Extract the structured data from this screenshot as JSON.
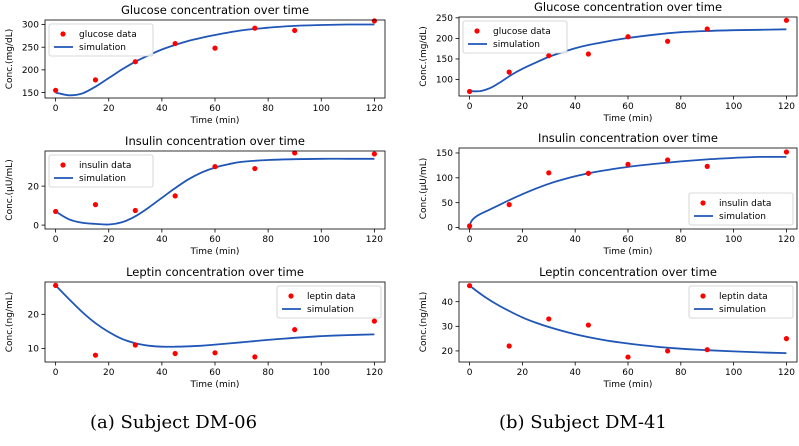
{
  "figure": {
    "caption_a": "(a) Subject DM-06",
    "caption_b": "(b) Subject DM-41"
  },
  "colors": {
    "data": "#ff0000",
    "simulation": "#1f56b7"
  },
  "chart_data": [
    {
      "type": "scatter",
      "panel": "a",
      "title": "Glucose concentration over time",
      "xlabel": "Time (min)",
      "ylabel": "Conc.(mg/dL)",
      "xlim": [
        -4,
        124
      ],
      "ylim": [
        138,
        310
      ],
      "xticks": [
        0,
        20,
        40,
        60,
        80,
        100,
        120
      ],
      "yticks": [
        150,
        200,
        250,
        300
      ],
      "legend_position": "upper left",
      "series": [
        {
          "name": "glucose data",
          "kind": "points",
          "x": [
            0,
            15,
            30,
            45,
            60,
            75,
            90,
            120
          ],
          "y": [
            155,
            178,
            218,
            258,
            248,
            292,
            287,
            308
          ]
        },
        {
          "name": "simulation",
          "kind": "line",
          "x": [
            0,
            5,
            10,
            15,
            20,
            25,
            30,
            35,
            40,
            45,
            50,
            55,
            60,
            70,
            80,
            90,
            100,
            110,
            120
          ],
          "y": [
            150,
            144,
            148,
            163,
            182,
            201,
            218,
            232,
            245,
            255,
            264,
            271,
            277,
            287,
            293,
            297,
            299,
            300,
            300
          ]
        }
      ]
    },
    {
      "type": "scatter",
      "panel": "b",
      "title": "Glucose concentration over time",
      "xlabel": "Time (min)",
      "ylabel": "Conc.(mg/dL)",
      "xlim": [
        -4,
        124
      ],
      "ylim": [
        60,
        252
      ],
      "xticks": [
        0,
        20,
        40,
        60,
        80,
        100,
        120
      ],
      "yticks": [
        100,
        150,
        200,
        250
      ],
      "legend_position": "upper left",
      "series": [
        {
          "name": "glucose data",
          "kind": "points",
          "x": [
            0,
            15,
            30,
            45,
            60,
            75,
            90,
            120
          ],
          "y": [
            71,
            118,
            158,
            162,
            204,
            193,
            223,
            244
          ]
        },
        {
          "name": "simulation",
          "kind": "line",
          "x": [
            0,
            4,
            8,
            12,
            16,
            20,
            25,
            30,
            35,
            40,
            45,
            50,
            55,
            60,
            70,
            80,
            90,
            100,
            110,
            120
          ],
          "y": [
            72,
            72,
            80,
            95,
            112,
            126,
            141,
            155,
            166,
            176,
            184,
            190,
            196,
            201,
            209,
            215,
            218,
            220,
            221,
            222
          ]
        }
      ]
    },
    {
      "type": "scatter",
      "panel": "a",
      "title": "Insulin concentration over time",
      "xlabel": "Time (min)",
      "ylabel": "Conc.(μU/mL)",
      "xlim": [
        -4,
        124
      ],
      "ylim": [
        -2,
        38
      ],
      "xticks": [
        0,
        20,
        40,
        60,
        80,
        100,
        120
      ],
      "yticks": [
        0,
        20
      ],
      "legend_position": "upper left",
      "series": [
        {
          "name": "insulin data",
          "kind": "points",
          "x": [
            0,
            15,
            30,
            45,
            60,
            75,
            90,
            120
          ],
          "y": [
            7,
            10.5,
            7.5,
            15,
            30,
            29,
            37,
            36.5
          ]
        },
        {
          "name": "simulation",
          "kind": "line",
          "x": [
            0,
            5,
            10,
            15,
            20,
            25,
            30,
            35,
            40,
            45,
            50,
            55,
            60,
            65,
            70,
            80,
            90,
            100,
            110,
            120
          ],
          "y": [
            7,
            3,
            1.2,
            0.6,
            0.3,
            1.5,
            4.5,
            9,
            14,
            19,
            23.5,
            27,
            29.5,
            31.2,
            32.4,
            33.4,
            33.8,
            34,
            34,
            34
          ]
        }
      ]
    },
    {
      "type": "scatter",
      "panel": "b",
      "title": "Insulin concentration over time",
      "xlabel": "Time (min)",
      "ylabel": "Conc.(μU/mL)",
      "xlim": [
        -4,
        124
      ],
      "ylim": [
        -3,
        160
      ],
      "xticks": [
        0,
        20,
        40,
        60,
        80,
        100,
        120
      ],
      "yticks": [
        0,
        50,
        100,
        150
      ],
      "legend_position": "lower right",
      "series": [
        {
          "name": "insulin data",
          "kind": "points",
          "x": [
            0,
            15,
            30,
            45,
            60,
            75,
            90,
            120
          ],
          "y": [
            3,
            46,
            110,
            109,
            127,
            136,
            123,
            152
          ]
        },
        {
          "name": "simulation",
          "kind": "line",
          "x": [
            0,
            1,
            3,
            6,
            10,
            15,
            20,
            25,
            30,
            35,
            40,
            45,
            50,
            60,
            70,
            80,
            90,
            100,
            110,
            120
          ],
          "y": [
            4,
            15,
            24,
            32,
            42,
            55,
            67,
            78,
            88,
            96,
            103,
            109,
            114,
            122,
            128,
            133,
            137,
            140,
            142,
            142
          ]
        }
      ]
    },
    {
      "type": "scatter",
      "panel": "a",
      "title": "Leptin concentration over time",
      "xlabel": "Time (min)",
      "ylabel": "Conc.(ng/mL)",
      "xlim": [
        -4,
        124
      ],
      "ylim": [
        6,
        29.5
      ],
      "xticks": [
        0,
        20,
        40,
        60,
        80,
        100,
        120
      ],
      "yticks": [
        10,
        20
      ],
      "legend_position": "upper right",
      "series": [
        {
          "name": "leptin data",
          "kind": "points",
          "x": [
            0,
            15,
            30,
            45,
            60,
            75,
            90,
            120
          ],
          "y": [
            28.5,
            8,
            11,
            8.5,
            8.7,
            7.5,
            15.5,
            18
          ]
        },
        {
          "name": "simulation",
          "kind": "line",
          "x": [
            0,
            5,
            10,
            15,
            20,
            25,
            30,
            35,
            40,
            45,
            50,
            55,
            60,
            70,
            80,
            90,
            100,
            110,
            120
          ],
          "y": [
            28.5,
            24.5,
            20.7,
            17.4,
            14.8,
            12.8,
            11.5,
            10.8,
            10.5,
            10.5,
            10.6,
            10.8,
            11.1,
            11.8,
            12.5,
            13.1,
            13.6,
            13.9,
            14.1
          ]
        }
      ]
    },
    {
      "type": "scatter",
      "panel": "b",
      "title": "Leptin concentration over time",
      "xlabel": "Time (min)",
      "ylabel": "Conc.(ng/mL)",
      "xlim": [
        -4,
        124
      ],
      "ylim": [
        15.5,
        48
      ],
      "xticks": [
        0,
        20,
        40,
        60,
        80,
        100,
        120
      ],
      "yticks": [
        20,
        30,
        40
      ],
      "legend_position": "upper right",
      "series": [
        {
          "name": "leptin data",
          "kind": "points",
          "x": [
            0,
            15,
            30,
            45,
            60,
            75,
            90,
            120
          ],
          "y": [
            46.5,
            22,
            33,
            30.5,
            17.5,
            20,
            20.5,
            25
          ]
        },
        {
          "name": "simulation",
          "kind": "line",
          "x": [
            0,
            5,
            10,
            15,
            20,
            25,
            30,
            40,
            50,
            60,
            70,
            80,
            90,
            100,
            110,
            120
          ],
          "y": [
            46.5,
            42.5,
            39.1,
            36.2,
            33.6,
            31.5,
            29.7,
            26.8,
            24.6,
            23.0,
            21.8,
            20.9,
            20.3,
            19.8,
            19.4,
            19.1
          ]
        }
      ]
    }
  ]
}
